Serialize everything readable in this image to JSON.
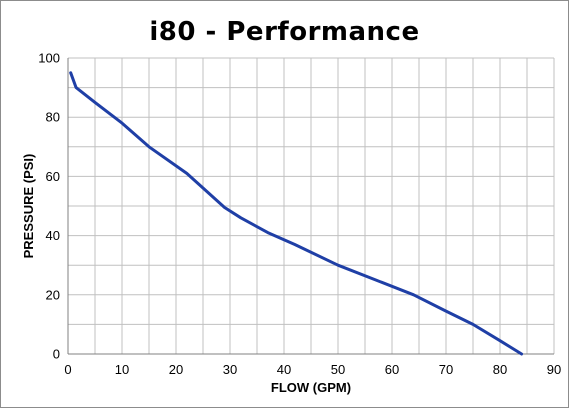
{
  "chart_data": {
    "type": "line",
    "title": "i80 - Performance",
    "xlabel": "FLOW (GPM)",
    "ylabel": "PRESSURE (PSI)",
    "xlim": [
      0,
      90
    ],
    "ylim": [
      0,
      100
    ],
    "x_ticks": [
      0,
      10,
      20,
      30,
      40,
      50,
      60,
      70,
      80,
      90
    ],
    "y_ticks": [
      0,
      20,
      40,
      60,
      80,
      100
    ],
    "grid": true,
    "grid_minor_x": 5,
    "grid_minor_y": 10,
    "legend": "none",
    "series": [
      {
        "color": "#1f3fa6",
        "x": [
          0.5,
          1.5,
          5,
          10,
          15,
          22,
          29,
          32,
          37,
          42,
          50,
          57,
          64,
          70,
          75,
          80,
          84
        ],
        "y": [
          95,
          90,
          85,
          78,
          70,
          61,
          49.5,
          46,
          41,
          37,
          30,
          25,
          20,
          14.5,
          10,
          4.5,
          0
        ]
      }
    ]
  },
  "colors": {
    "line": "#1f3fa6",
    "grid": "#c0c0c0",
    "frame": "#8c8c8c"
  }
}
